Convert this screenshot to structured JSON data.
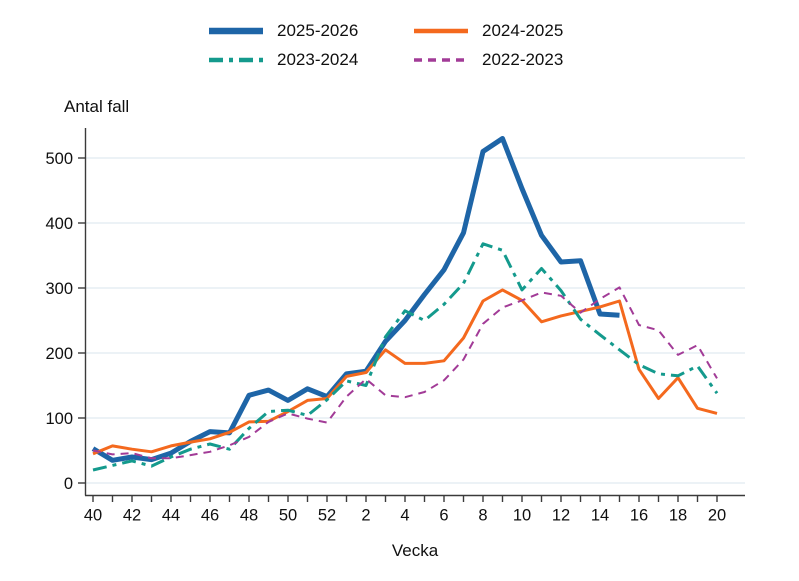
{
  "chart_data": {
    "type": "line",
    "title": "",
    "ylabel": "Antal fall",
    "xlabel": "Vecka",
    "ylim": [
      0,
      550
    ],
    "y_ticks": [
      0,
      100,
      200,
      300,
      400,
      500
    ],
    "x_categories": [
      "40",
      "41",
      "42",
      "43",
      "44",
      "45",
      "46",
      "47",
      "48",
      "49",
      "50",
      "51",
      "52",
      "1",
      "2",
      "3",
      "4",
      "5",
      "6",
      "7",
      "8",
      "9",
      "10",
      "11",
      "12",
      "13",
      "14",
      "15",
      "16",
      "17",
      "18",
      "19",
      "20"
    ],
    "x_tick_labels": [
      "40",
      "42",
      "44",
      "46",
      "48",
      "50",
      "52",
      "2",
      "4",
      "6",
      "8",
      "10",
      "12",
      "14",
      "16",
      "18",
      "20"
    ],
    "grid": "horizontal",
    "legend_position": "top-center",
    "axis_color": "#3a3a3a",
    "gridline_color": "#e6eef3",
    "series": [
      {
        "name": "2025-2026",
        "color": "#1e65a7",
        "width": 5,
        "dash": "solid",
        "values": [
          53,
          35,
          40,
          36,
          46,
          64,
          79,
          77,
          135,
          143,
          127,
          145,
          133,
          168,
          172,
          218,
          250,
          290,
          328,
          385,
          510,
          530,
          453,
          381,
          340,
          342,
          260,
          258
        ]
      },
      {
        "name": "2024-2025",
        "color": "#f4691e",
        "width": 3,
        "dash": "solid",
        "values": [
          45,
          57,
          52,
          48,
          57,
          63,
          68,
          78,
          94,
          95,
          110,
          127,
          130,
          164,
          170,
          205,
          184,
          184,
          188,
          223,
          280,
          297,
          281,
          248,
          257,
          264,
          271,
          280,
          175,
          130,
          162,
          115,
          107
        ]
      },
      {
        "name": "2023-2024",
        "color": "#149a8d",
        "width": 3,
        "dash": "dashdot",
        "values": [
          20,
          27,
          34,
          26,
          40,
          52,
          60,
          52,
          84,
          110,
          112,
          104,
          128,
          157,
          150,
          225,
          265,
          250,
          275,
          307,
          368,
          358,
          297,
          330,
          296,
          252,
          228,
          205,
          182,
          168,
          165,
          180,
          138
        ]
      },
      {
        "name": "2022-2023",
        "color": "#a23b97",
        "width": 2,
        "dash": "dashed",
        "values": [
          50,
          44,
          46,
          38,
          38,
          43,
          48,
          58,
          71,
          94,
          107,
          99,
          93,
          133,
          160,
          135,
          132,
          140,
          158,
          190,
          245,
          270,
          281,
          293,
          288,
          262,
          283,
          301,
          243,
          235,
          197,
          212,
          161
        ]
      }
    ]
  }
}
